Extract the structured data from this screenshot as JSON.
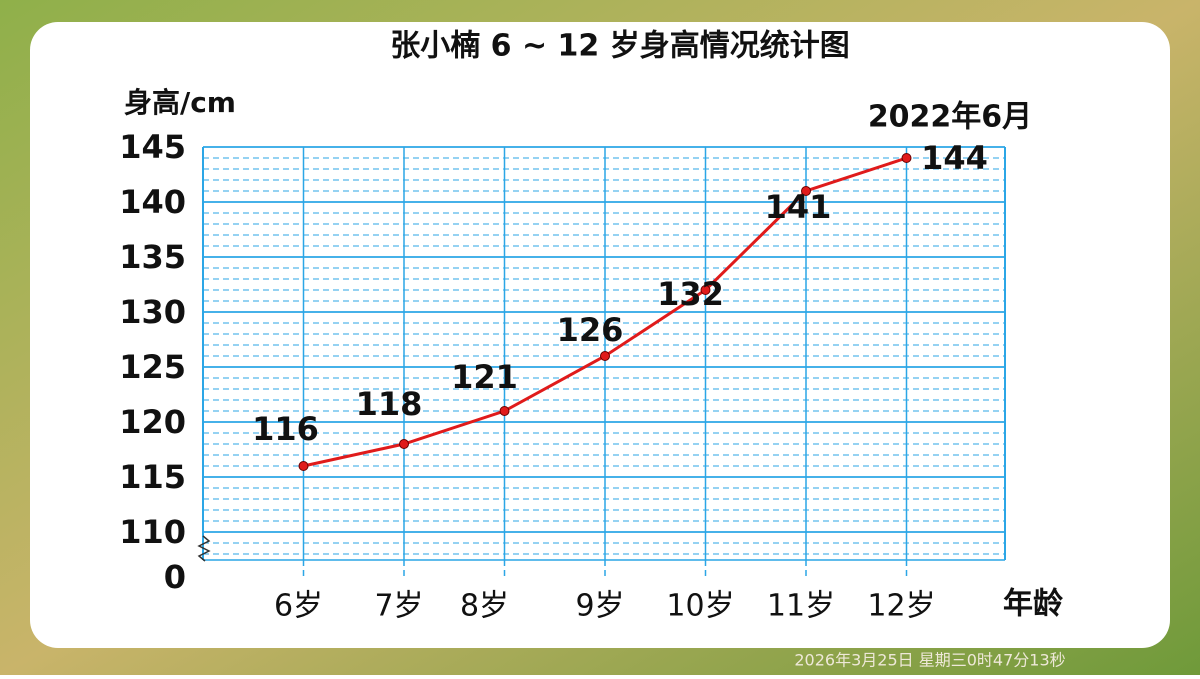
{
  "chart_data": {
    "type": "line",
    "title": "张小楠 6 ~ 12 岁身高情况统计图",
    "y_axis_label": "身高/cm",
    "x_axis_label": "年龄",
    "annotation": "2022年6月",
    "timestamp": "2026年3月25日 星期三0时47分13秒",
    "categories": [
      "6岁",
      "7岁",
      "8岁",
      "9岁",
      "10岁",
      "11岁",
      "12岁"
    ],
    "series": [
      {
        "name": "身高",
        "color": "#e01b1b",
        "values": [
          116,
          118,
          121,
          126,
          132,
          141,
          144
        ]
      }
    ],
    "ylim": [
      110,
      145
    ],
    "yticks": [
      0,
      110,
      115,
      120,
      125,
      130,
      135,
      140,
      145
    ],
    "axis_break": true,
    "grid": true
  }
}
